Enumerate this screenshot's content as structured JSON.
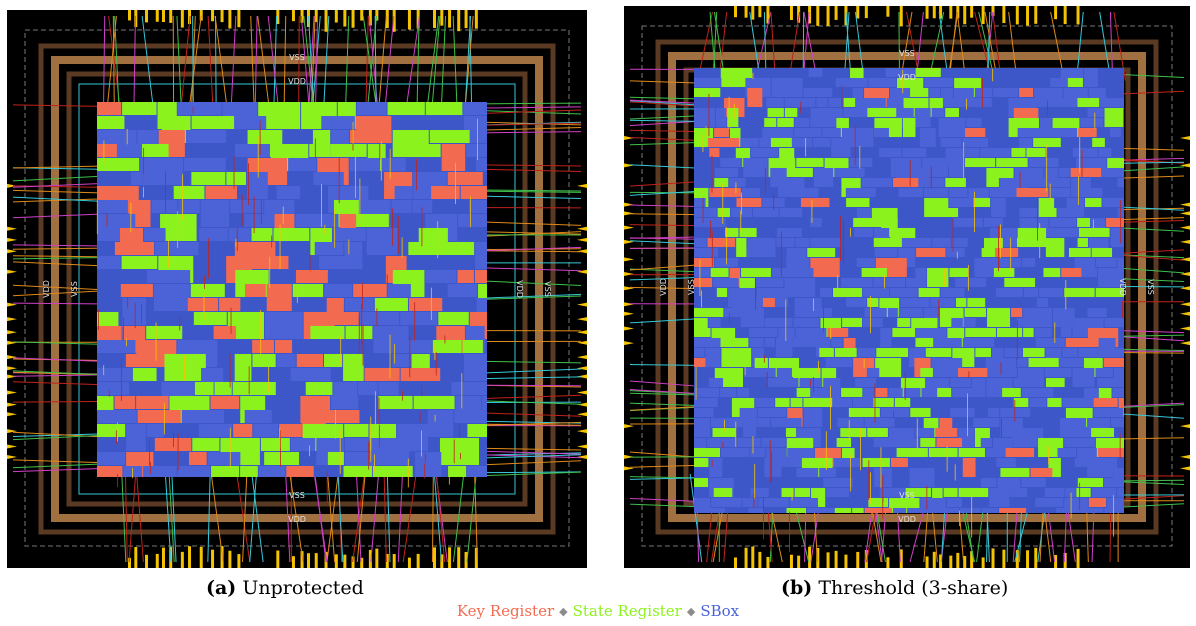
{
  "panels": [
    {
      "id": "a",
      "label": "(a)",
      "title": "Unprotected",
      "rail_labels": [
        "VSS",
        "VDD",
        "VSS",
        "VDD",
        "VDD",
        "VSS",
        "VDD",
        "VSS"
      ]
    },
    {
      "id": "b",
      "label": "(b)",
      "title": "Threshold (3-share)",
      "rail_labels": [
        "VSS",
        "VDD",
        "VSS",
        "VDD",
        "VDD",
        "VSS",
        "VDD",
        "VSS"
      ]
    }
  ],
  "legend": [
    {
      "name": "Key Register",
      "color": "#f26b50"
    },
    {
      "name": "State Register",
      "color": "#8cf21e"
    },
    {
      "name": "SBox",
      "color": "#4b63d6"
    }
  ],
  "legend_separator": "◆",
  "colors": {
    "background": "#000000",
    "core_fill": "#3d57c9",
    "io_pin": "#f5c400",
    "ring_outline": "#c8a060",
    "wire_red": "#c0231b",
    "wire_orange": "#e08a1a",
    "wire_cyan": "#36c8d8",
    "wire_green": "#3fc04a",
    "wire_magenta": "#d040c8"
  }
}
